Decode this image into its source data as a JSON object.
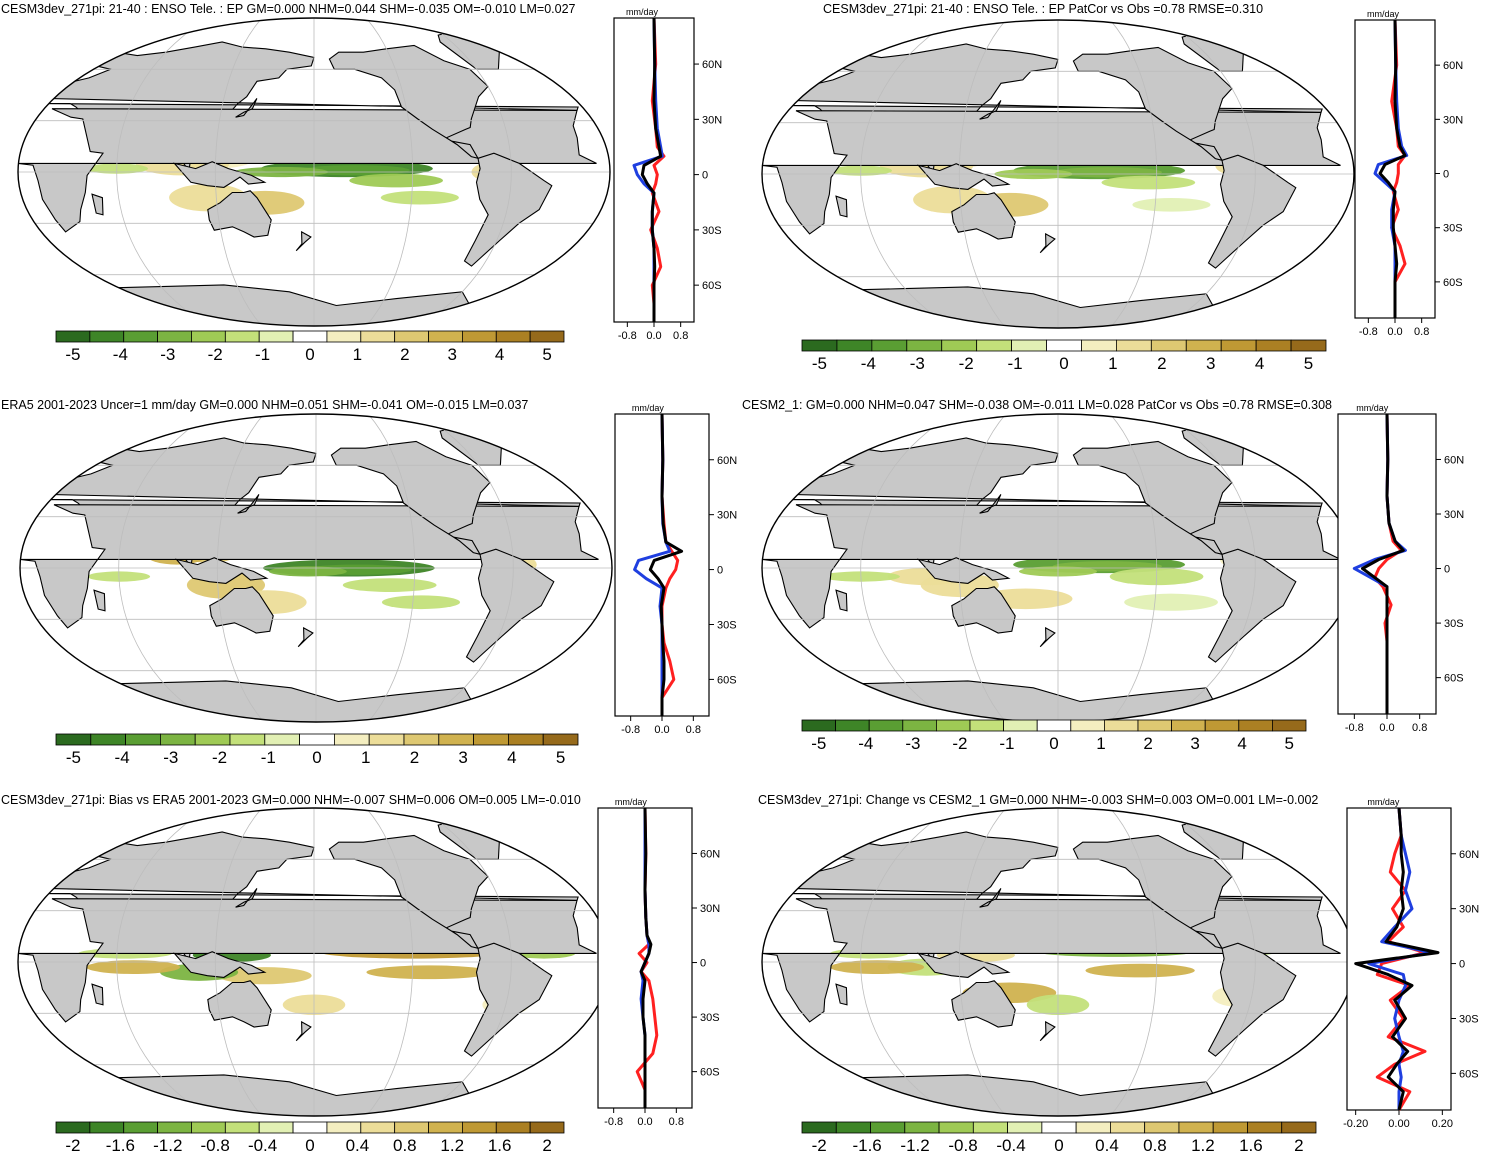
{
  "colors": {
    "land": "#c8c8c8",
    "ocean": "#ffffff",
    "coast": "#000000",
    "grid": "#bdbdbd",
    "series_red": "#ff2020",
    "series_blue": "#1f3fe0",
    "series_black": "#000000"
  },
  "palette": [
    "#2b6a1f",
    "#3e8527",
    "#5a9e33",
    "#7cb442",
    "#9fca55",
    "#c3e07a",
    "#e2f0b4",
    "#ffffff",
    "#f4eec0",
    "#ecdd99",
    "#dec872",
    "#d0b24f",
    "#bf9934",
    "#ab8023",
    "#966a1b"
  ],
  "chart_data": [
    {
      "type": "heatmap",
      "title": "CESM3dev_271pi: 21-40 : ENSO Tele. : EP GM=0.000 NHM=0.044 SHM=-0.035 OM=-0.010 LM=0.027",
      "colorbar_labels": [
        "-5",
        "-4",
        "-3",
        "-2",
        "-1",
        "0",
        "1",
        "2",
        "3",
        "4",
        "5"
      ],
      "zonal": {
        "unit": "mm/day",
        "xticks": [
          "-0.8",
          "0.0",
          "0.8"
        ],
        "xlim": [
          -1.2,
          1.2
        ],
        "yticks": [
          "60N",
          "30N",
          "0",
          "30S",
          "60S"
        ],
        "ylim": [
          -80,
          85
        ],
        "series": [
          {
            "color": "red",
            "lat": [
              85,
              60,
              40,
              25,
              15,
              10,
              5,
              0,
              -5,
              -10,
              -20,
              -30,
              -40,
              -50,
              -60,
              -70,
              -80
            ],
            "values": [
              0,
              0.05,
              -0.05,
              0.05,
              0.1,
              0.3,
              0,
              0.1,
              0.05,
              -0.05,
              0.15,
              -0.1,
              0.1,
              0.2,
              -0.05,
              0,
              0
            ]
          },
          {
            "color": "blue",
            "lat": [
              85,
              60,
              40,
              25,
              15,
              10,
              5,
              0,
              -5,
              -10,
              -20,
              -30,
              -40,
              -50,
              -60,
              -70,
              -80
            ],
            "values": [
              0,
              0.02,
              0.05,
              0.1,
              0.2,
              0.25,
              -0.6,
              -0.5,
              -0.3,
              0,
              -0.05,
              -0.05,
              0,
              0,
              0,
              0,
              0
            ]
          },
          {
            "color": "black",
            "lat": [
              85,
              60,
              40,
              25,
              15,
              10,
              5,
              0,
              -5,
              -10,
              -20,
              -30,
              -40,
              -50,
              -60,
              -70,
              -80
            ],
            "values": [
              0,
              0.02,
              0,
              0.05,
              0.15,
              0.2,
              -0.3,
              -0.35,
              -0.2,
              0,
              -0.05,
              -0.05,
              0,
              0.02,
              0,
              0,
              0
            ]
          }
        ]
      }
    },
    {
      "type": "heatmap",
      "title": "CESM3dev_271pi: 21-40 : ENSO Tele. : EP PatCor vs Obs =0.78 RMSE=0.310",
      "colorbar_labels": [
        "-5",
        "-4",
        "-3",
        "-2",
        "-1",
        "0",
        "1",
        "2",
        "3",
        "4",
        "5"
      ],
      "zonal": {
        "unit": "mm/day",
        "xticks": [
          "-0.8",
          "0.0",
          "0.8"
        ],
        "xlim": [
          -1.2,
          1.2
        ],
        "yticks": [
          "60N",
          "30N",
          "0",
          "30S",
          "60S"
        ],
        "ylim": [
          -80,
          85
        ],
        "series": [
          {
            "color": "red",
            "lat": [
              85,
              60,
              40,
              25,
              15,
              10,
              5,
              0,
              -5,
              -10,
              -20,
              -30,
              -40,
              -50,
              -60,
              -70,
              -80
            ],
            "values": [
              0,
              0.05,
              -0.1,
              0.05,
              0.1,
              0.3,
              0.1,
              0.1,
              0.05,
              -0.05,
              0.1,
              -0.1,
              0.15,
              0.3,
              0,
              0,
              0
            ]
          },
          {
            "color": "blue",
            "lat": [
              85,
              60,
              40,
              25,
              15,
              10,
              5,
              0,
              -5,
              -10,
              -20,
              -30,
              -40,
              -50,
              -60,
              -70,
              -80
            ],
            "values": [
              0,
              0.02,
              0.05,
              0.1,
              0.2,
              0.35,
              -0.5,
              -0.6,
              -0.3,
              0,
              -0.1,
              -0.1,
              0,
              0,
              0,
              0,
              0
            ]
          },
          {
            "color": "black",
            "lat": [
              85,
              60,
              40,
              25,
              15,
              10,
              5,
              0,
              -5,
              -10,
              -20,
              -30,
              -40,
              -50,
              -60,
              -70,
              -80
            ],
            "values": [
              0,
              0.02,
              0,
              0.05,
              0.15,
              0.3,
              -0.3,
              -0.45,
              -0.2,
              0,
              -0.05,
              -0.05,
              0,
              0.05,
              0,
              0,
              0
            ]
          }
        ]
      }
    },
    {
      "type": "heatmap",
      "title": "ERA5 2001-2023 Uncer=1 mm/day GM=0.000 NHM=0.051 SHM=-0.041 OM=-0.015 LM=0.037",
      "colorbar_labels": [
        "-5",
        "-4",
        "-3",
        "-2",
        "-1",
        "0",
        "1",
        "2",
        "3",
        "4",
        "5"
      ],
      "zonal": {
        "unit": "mm/day",
        "xticks": [
          "-0.8",
          "0.0",
          "0.8"
        ],
        "xlim": [
          -1.2,
          1.2
        ],
        "yticks": [
          "60N",
          "30N",
          "0",
          "30S",
          "60S"
        ],
        "ylim": [
          -80,
          85
        ],
        "series": [
          {
            "color": "red",
            "lat": [
              85,
              60,
              40,
              25,
              15,
              10,
              5,
              0,
              -5,
              -10,
              -20,
              -30,
              -40,
              -50,
              -60,
              -70,
              -80
            ],
            "values": [
              0,
              0.02,
              0,
              0.05,
              0.1,
              0.25,
              0.4,
              0.35,
              0.2,
              0.1,
              0,
              0,
              0.05,
              0.2,
              0.3,
              0,
              0
            ]
          },
          {
            "color": "blue",
            "lat": [
              85,
              60,
              40,
              25,
              15,
              10,
              5,
              0,
              -5,
              -10,
              -20,
              -30,
              -40,
              -50,
              -60,
              -70,
              -80
            ],
            "values": [
              0,
              0.02,
              0,
              0.02,
              0.1,
              0.2,
              -0.6,
              -0.7,
              -0.4,
              0,
              -0.05,
              0,
              0,
              0,
              0,
              0,
              0
            ]
          },
          {
            "color": "black",
            "lat": [
              85,
              60,
              40,
              25,
              15,
              10,
              5,
              0,
              -5,
              -10,
              -20,
              -30,
              -40,
              -50,
              -60,
              -70,
              -80
            ],
            "values": [
              0,
              0.02,
              0,
              0.03,
              0.1,
              0.5,
              -0.2,
              -0.3,
              -0.1,
              0.05,
              -0.02,
              0,
              0.02,
              0.05,
              0.05,
              0,
              0
            ]
          }
        ]
      }
    },
    {
      "type": "heatmap",
      "title": "CESM2_1: GM=0.000 NHM=0.047 SHM=-0.038 OM=-0.011 LM=0.028 PatCor vs Obs =0.78 RMSE=0.308",
      "colorbar_labels": [
        "-5",
        "-4",
        "-3",
        "-2",
        "-1",
        "0",
        "1",
        "2",
        "3",
        "4",
        "5"
      ],
      "zonal": {
        "unit": "mm/day",
        "xticks": [
          "-0.8",
          "0.0",
          "0.8"
        ],
        "xlim": [
          -1.2,
          1.2
        ],
        "yticks": [
          "60N",
          "30N",
          "0",
          "30S",
          "60S"
        ],
        "ylim": [
          -80,
          85
        ],
        "series": [
          {
            "color": "red",
            "lat": [
              85,
              60,
              40,
              25,
              15,
              10,
              5,
              0,
              -5,
              -10,
              -20,
              -30,
              -40,
              -50,
              -60,
              -70,
              -80
            ],
            "values": [
              0,
              0.02,
              0,
              0.05,
              0.15,
              0.35,
              0,
              -0.2,
              -0.3,
              -0.1,
              0.1,
              -0.05,
              0,
              0,
              0,
              0,
              0
            ]
          },
          {
            "color": "blue",
            "lat": [
              85,
              60,
              40,
              25,
              15,
              10,
              5,
              0,
              -5,
              -10,
              -20,
              -30,
              -40,
              -50,
              -60,
              -70,
              -80
            ],
            "values": [
              0,
              0.02,
              0,
              0.05,
              0.2,
              0.45,
              -0.3,
              -0.8,
              -0.4,
              0,
              0,
              0,
              0,
              0,
              0,
              0,
              0
            ]
          },
          {
            "color": "black",
            "lat": [
              85,
              60,
              40,
              25,
              15,
              10,
              5,
              0,
              -5,
              -10,
              -20,
              -30,
              -40,
              -50,
              -60,
              -70,
              -80
            ],
            "values": [
              0,
              0.02,
              0,
              0.05,
              0.2,
              0.4,
              -0.2,
              -0.6,
              -0.3,
              0,
              0,
              0,
              0,
              0,
              0,
              0,
              0
            ]
          }
        ]
      }
    },
    {
      "type": "heatmap",
      "title": "CESM3dev_271pi: Bias vs ERA5 2001-2023 GM=0.000 NHM=-0.007 SHM=0.006 OM=0.005 LM=-0.010",
      "colorbar_labels": [
        "-2",
        "-1.6",
        "-1.2",
        "-0.8",
        "-0.4",
        "0",
        "0.4",
        "0.8",
        "1.2",
        "1.6",
        "2"
      ],
      "zonal": {
        "unit": "mm/day",
        "xticks": [
          "-0.8",
          "0.0",
          "0.8"
        ],
        "xlim": [
          -1.2,
          1.2
        ],
        "yticks": [
          "60N",
          "30N",
          "0",
          "30S",
          "60S"
        ],
        "ylim": [
          -80,
          85
        ],
        "series": [
          {
            "color": "red",
            "lat": [
              85,
              60,
              40,
              25,
              15,
              10,
              5,
              0,
              -5,
              -10,
              -20,
              -30,
              -40,
              -50,
              -60,
              -70,
              -80
            ],
            "values": [
              0,
              0.02,
              0,
              0.02,
              0.05,
              0.1,
              -0.15,
              0.05,
              -0.1,
              0.1,
              0.2,
              0.25,
              0.3,
              0.2,
              -0.2,
              0,
              0
            ]
          },
          {
            "color": "blue",
            "lat": [
              85,
              60,
              40,
              25,
              15,
              10,
              5,
              0,
              -5,
              -10,
              -20,
              -30,
              -40,
              -50,
              -60,
              -70,
              -80
            ],
            "values": [
              0,
              0,
              0,
              0.02,
              0.05,
              0.1,
              0.1,
              0,
              -0.1,
              -0.05,
              -0.1,
              -0.05,
              0,
              0,
              0,
              0,
              0
            ]
          },
          {
            "color": "black",
            "lat": [
              85,
              60,
              40,
              25,
              15,
              10,
              5,
              0,
              -5,
              -10,
              -20,
              -30,
              -40,
              -50,
              -60,
              -70,
              -80
            ],
            "values": [
              0,
              0.02,
              0,
              0.02,
              0.05,
              0.15,
              0.1,
              0,
              -0.1,
              0,
              -0.05,
              -0.05,
              0,
              0,
              0,
              0,
              0
            ]
          }
        ]
      }
    },
    {
      "type": "heatmap",
      "title": "CESM3dev_271pi: Change vs CESM2_1 GM=0.000 NHM=-0.003 SHM=0.003 OM=0.001 LM=-0.002",
      "colorbar_labels": [
        "-2",
        "-1.6",
        "-1.2",
        "-0.8",
        "-0.4",
        "0",
        "0.4",
        "0.8",
        "1.2",
        "1.6",
        "2"
      ],
      "zonal": {
        "unit": "mm/day",
        "xticks": [
          "-0.20",
          "0.00",
          "0.20"
        ],
        "xlim": [
          -0.24,
          0.24
        ],
        "yticks": [
          "60N",
          "30N",
          "0",
          "30S",
          "60S"
        ],
        "ylim": [
          -80,
          85
        ],
        "series": [
          {
            "color": "red",
            "lat": [
              85,
              70,
              60,
              50,
              40,
              30,
              20,
              12,
              6,
              0,
              -6,
              -12,
              -20,
              -30,
              -40,
              -48,
              -55,
              -62,
              -70,
              -80
            ],
            "values": [
              0,
              0.01,
              -0.02,
              -0.04,
              0.03,
              -0.03,
              0.02,
              -0.05,
              0.12,
              -0.08,
              -0.1,
              0.05,
              -0.04,
              0.02,
              -0.05,
              0.12,
              -0.02,
              -0.1,
              0.05,
              0
            ]
          },
          {
            "color": "blue",
            "lat": [
              85,
              70,
              60,
              50,
              40,
              30,
              20,
              12,
              6,
              0,
              -6,
              -12,
              -20,
              -30,
              -40,
              -48,
              -55,
              -62,
              -70,
              -80
            ],
            "values": [
              0,
              0.01,
              0.03,
              0.05,
              0.03,
              0.06,
              -0.02,
              -0.08,
              0.15,
              -0.14,
              0.02,
              0.03,
              0,
              -0.02,
              0,
              0.02,
              0,
              0.01,
              0,
              0
            ]
          },
          {
            "color": "black",
            "lat": [
              85,
              70,
              60,
              50,
              40,
              30,
              20,
              12,
              6,
              0,
              -6,
              -12,
              -20,
              -30,
              -40,
              -48,
              -55,
              -62,
              -70,
              -80
            ],
            "values": [
              0,
              0.01,
              0.01,
              0.02,
              0.01,
              0.02,
              -0.01,
              -0.06,
              0.18,
              -0.2,
              -0.05,
              0.06,
              -0.02,
              0.03,
              -0.03,
              0.04,
              -0.01,
              -0.05,
              0.02,
              0
            ]
          }
        ]
      }
    }
  ]
}
